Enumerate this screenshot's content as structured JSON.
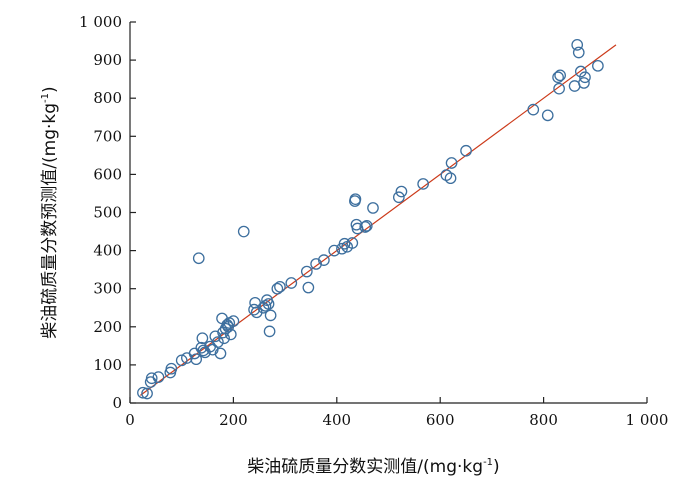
{
  "chart_data": {
    "type": "scatter",
    "title": "",
    "xlabel": "柴油硫质量分数实测值/(mg·kg",
    "xlabel_sup": "-1",
    "xlabel_tail": ")",
    "ylabel": "柴油硫质量分数预测值/(mg·kg",
    "ylabel_sup": "-1",
    "ylabel_tail": ")",
    "xlim": [
      0,
      1000
    ],
    "ylim": [
      0,
      1000
    ],
    "x_ticks": [
      0,
      200,
      400,
      600,
      800,
      1000
    ],
    "x_tick_labels": [
      "0",
      "200",
      "400",
      "600",
      "800",
      "1 000"
    ],
    "y_ticks": [
      0,
      100,
      200,
      300,
      400,
      500,
      600,
      700,
      800,
      900,
      1000
    ],
    "y_tick_labels": [
      "0",
      "100",
      "200",
      "300",
      "400",
      "500",
      "600",
      "700",
      "800",
      "900",
      "1 000"
    ],
    "grid": false,
    "point_color": "#3d6f9e",
    "line_color": "#cc3a1a",
    "fit_line": {
      "x": [
        20,
        940
      ],
      "y": [
        20,
        940
      ]
    },
    "points": [
      [
        25,
        27
      ],
      [
        33,
        25
      ],
      [
        40,
        55
      ],
      [
        42,
        65
      ],
      [
        55,
        68
      ],
      [
        78,
        80
      ],
      [
        80,
        90
      ],
      [
        100,
        112
      ],
      [
        110,
        118
      ],
      [
        125,
        130
      ],
      [
        128,
        115
      ],
      [
        133,
        380
      ],
      [
        138,
        145
      ],
      [
        140,
        170
      ],
      [
        142,
        138
      ],
      [
        145,
        133
      ],
      [
        155,
        148
      ],
      [
        160,
        140
      ],
      [
        165,
        175
      ],
      [
        170,
        160
      ],
      [
        175,
        130
      ],
      [
        178,
        222
      ],
      [
        180,
        185
      ],
      [
        182,
        170
      ],
      [
        185,
        195
      ],
      [
        188,
        205
      ],
      [
        190,
        200
      ],
      [
        192,
        210
      ],
      [
        195,
        180
      ],
      [
        200,
        215
      ],
      [
        220,
        450
      ],
      [
        240,
        245
      ],
      [
        242,
        263
      ],
      [
        245,
        238
      ],
      [
        258,
        250
      ],
      [
        262,
        255
      ],
      [
        265,
        270
      ],
      [
        268,
        260
      ],
      [
        270,
        188
      ],
      [
        272,
        230
      ],
      [
        285,
        300
      ],
      [
        290,
        305
      ],
      [
        312,
        315
      ],
      [
        342,
        345
      ],
      [
        345,
        303
      ],
      [
        360,
        365
      ],
      [
        375,
        375
      ],
      [
        395,
        400
      ],
      [
        410,
        405
      ],
      [
        415,
        418
      ],
      [
        420,
        410
      ],
      [
        430,
        420
      ],
      [
        435,
        530
      ],
      [
        436,
        535
      ],
      [
        438,
        468
      ],
      [
        440,
        458
      ],
      [
        455,
        462
      ],
      [
        458,
        465
      ],
      [
        470,
        512
      ],
      [
        520,
        540
      ],
      [
        525,
        555
      ],
      [
        567,
        575
      ],
      [
        612,
        598
      ],
      [
        620,
        590
      ],
      [
        622,
        630
      ],
      [
        650,
        662
      ],
      [
        780,
        770
      ],
      [
        808,
        755
      ],
      [
        828,
        855
      ],
      [
        830,
        825
      ],
      [
        832,
        860
      ],
      [
        860,
        832
      ],
      [
        865,
        940
      ],
      [
        868,
        920
      ],
      [
        872,
        870
      ],
      [
        878,
        840
      ],
      [
        880,
        855
      ],
      [
        905,
        885
      ]
    ]
  }
}
